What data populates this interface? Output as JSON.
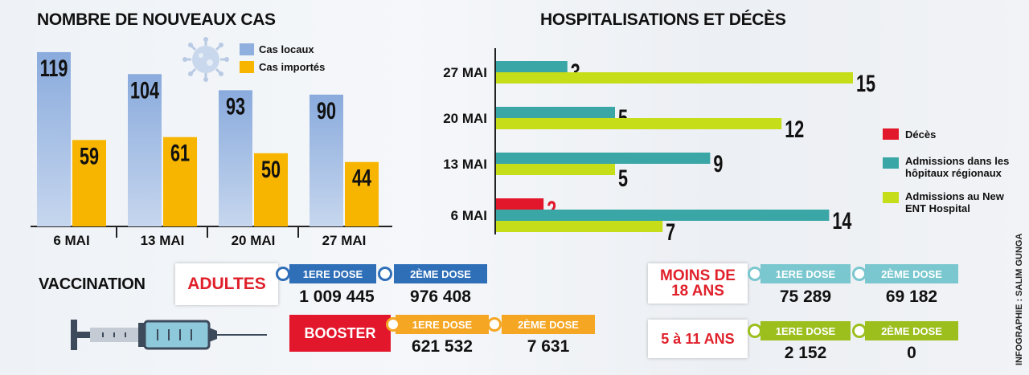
{
  "cases": {
    "title": "NOMBRE DE NOUVEAUX CAS",
    "legend": [
      "Cas locaux",
      "Cas importés"
    ]
  },
  "hosp": {
    "title": "HOSPITALISATIONS ET DÉCÈS",
    "legend": [
      "Décès",
      "Admissions dans les hôpitaux régionaux",
      "Admissions au New ENT Hospital"
    ]
  },
  "chart_data": [
    {
      "type": "bar",
      "title": "NOMBRE DE NOUVEAUX CAS",
      "categories": [
        "6 MAI",
        "13 MAI",
        "20 MAI",
        "27 MAI"
      ],
      "series": [
        {
          "name": "Cas locaux",
          "values": [
            119,
            104,
            93,
            90
          ],
          "color": "#8fb0de"
        },
        {
          "name": "Cas importés",
          "values": [
            59,
            61,
            50,
            44
          ],
          "color": "#f7b500"
        }
      ],
      "ylim": [
        0,
        125
      ]
    },
    {
      "type": "bar",
      "orientation": "horizontal",
      "title": "HOSPITALISATIONS ET DÉCÈS",
      "categories": [
        "27 MAI",
        "20 MAI",
        "13 MAI",
        "6 MAI"
      ],
      "series": [
        {
          "name": "Décès",
          "values": [
            null,
            null,
            null,
            2
          ],
          "color": "#e3172b"
        },
        {
          "name": "Admissions dans les hôpitaux régionaux",
          "values": [
            3,
            5,
            9,
            14
          ],
          "color": "#3aa6a6"
        },
        {
          "name": "Admissions au New ENT Hospital",
          "values": [
            15,
            12,
            5,
            7
          ],
          "color": "#c6dd1a"
        }
      ],
      "xlim": [
        0,
        15
      ]
    }
  ],
  "vaccination": {
    "title": "VACCINATION",
    "adultes": "ADULTES",
    "booster": "BOOSTER",
    "moins18": [
      "MOINS DE",
      "18 ANS"
    ],
    "kids": "5 à 11 ANS",
    "dose1": "1ERE DOSE",
    "dose2": "2ÈME DOSE",
    "adultes_dose1": "1 009 445",
    "adultes_dose2": "976 408",
    "booster_dose1": "621 532",
    "booster_dose2": "7 631",
    "moins18_dose1": "75 289",
    "moins18_dose2": "69 182",
    "kids_dose1": "2 152",
    "kids_dose2": "0"
  },
  "credit": "INFOGRAPHIE : SALIM GUNGA",
  "colors": {
    "blue": "#2f6fb8",
    "orange": "#f5a623",
    "teal": "#7ac7cf",
    "green": "#9cbf1e",
    "red": "#e3172b"
  }
}
